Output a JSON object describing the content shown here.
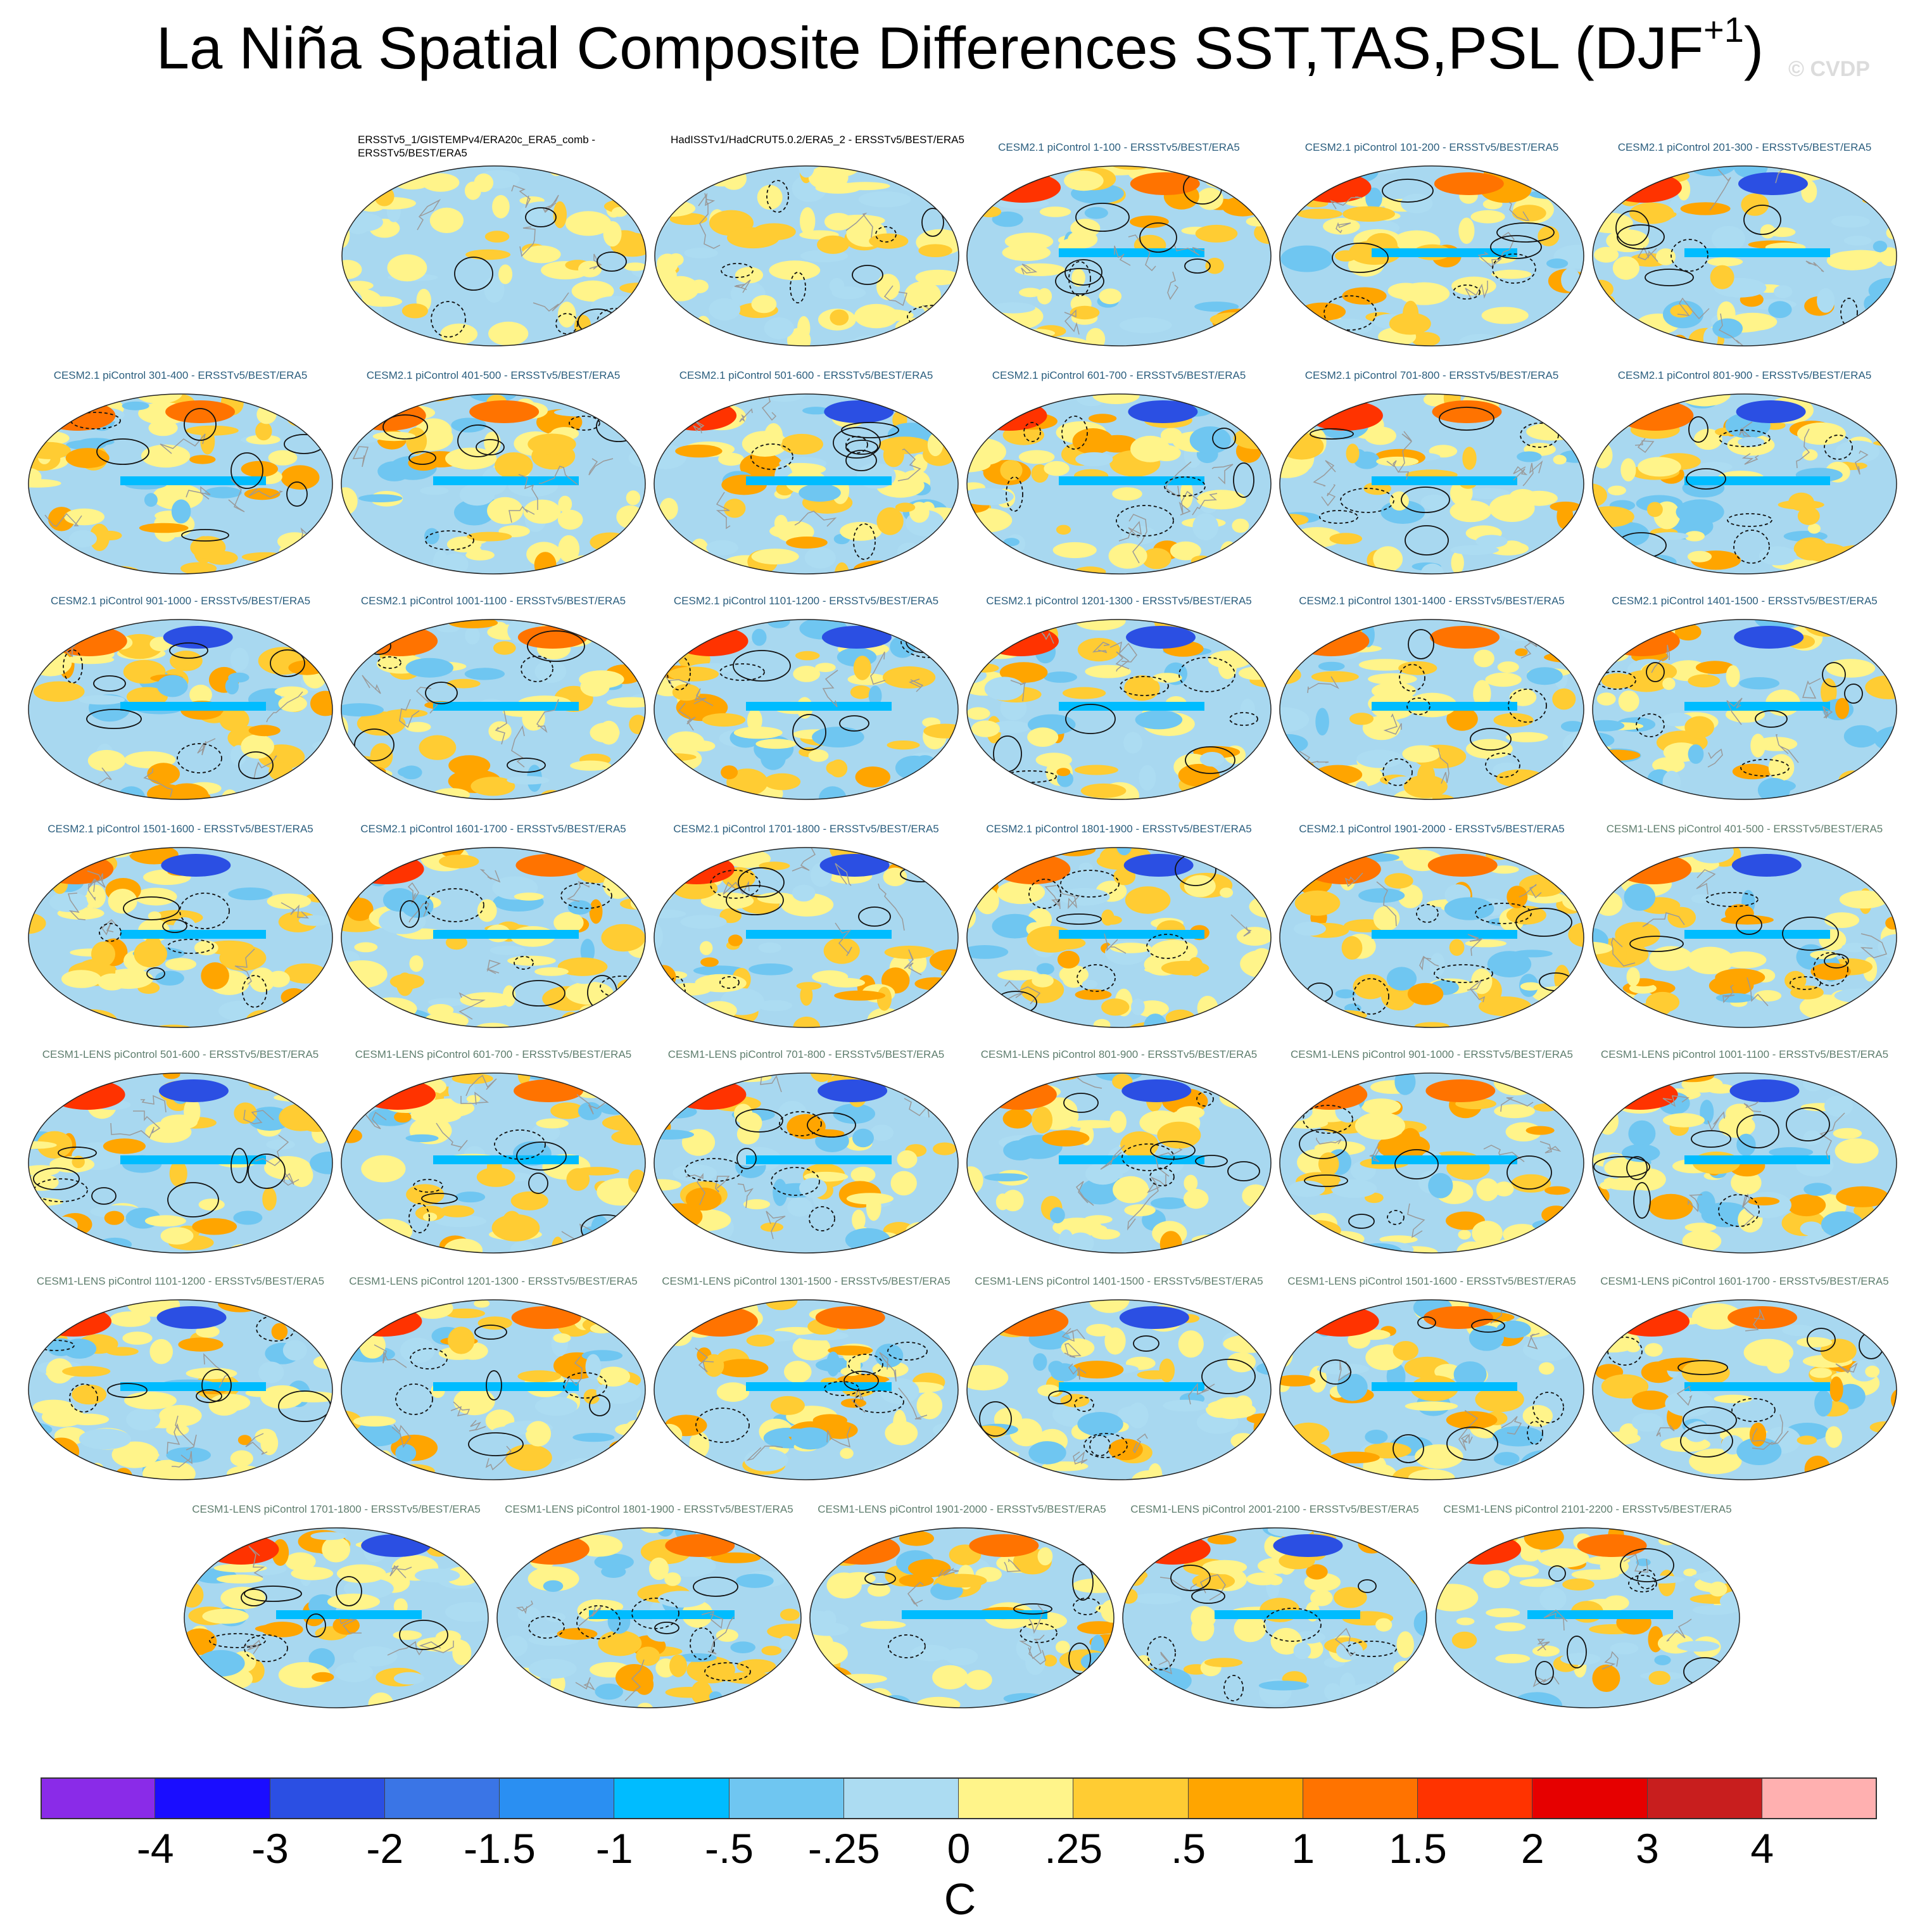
{
  "title": {
    "main": "La Niña Spatial Composite Differences SST,TAS,PSL (DJF",
    "superscript": "+1",
    "close": ")"
  },
  "watermark": "© CVDP",
  "colors": {
    "ocean_light": "#a8d8f0",
    "model_label_cesm2": "#2b5e7e",
    "model_label_cesm1": "#5f7e6e"
  },
  "panels": [
    {
      "label": "ERSSTv5_1/GISTEMPv4/ERA20c_ERA5_comb - ERSSTv5/BEST/ERA5",
      "group": "obs"
    },
    {
      "label": "HadISSTv1/HadCRUT5.0.2/ERA5_2 - ERSSTv5/BEST/ERA5",
      "group": "obs"
    },
    {
      "label": "CESM2.1 piControl 1-100 - ERSSTv5/BEST/ERA5",
      "group": "c2"
    },
    {
      "label": "CESM2.1 piControl 101-200 - ERSSTv5/BEST/ERA5",
      "group": "c2"
    },
    {
      "label": "CESM2.1 piControl 201-300 - ERSSTv5/BEST/ERA5",
      "group": "c2"
    },
    {
      "label": "CESM2.1 piControl 301-400 - ERSSTv5/BEST/ERA5",
      "group": "c2"
    },
    {
      "label": "CESM2.1 piControl 401-500 - ERSSTv5/BEST/ERA5",
      "group": "c2"
    },
    {
      "label": "CESM2.1 piControl 501-600 - ERSSTv5/BEST/ERA5",
      "group": "c2"
    },
    {
      "label": "CESM2.1 piControl 601-700 - ERSSTv5/BEST/ERA5",
      "group": "c2"
    },
    {
      "label": "CESM2.1 piControl 701-800 - ERSSTv5/BEST/ERA5",
      "group": "c2"
    },
    {
      "label": "CESM2.1 piControl 801-900 - ERSSTv5/BEST/ERA5",
      "group": "c2"
    },
    {
      "label": "CESM2.1 piControl 901-1000 - ERSSTv5/BEST/ERA5",
      "group": "c2"
    },
    {
      "label": "CESM2.1 piControl 1001-1100 - ERSSTv5/BEST/ERA5",
      "group": "c2"
    },
    {
      "label": "CESM2.1 piControl 1101-1200 - ERSSTv5/BEST/ERA5",
      "group": "c2"
    },
    {
      "label": "CESM2.1 piControl 1201-1300 - ERSSTv5/BEST/ERA5",
      "group": "c2"
    },
    {
      "label": "CESM2.1 piControl 1301-1400 - ERSSTv5/BEST/ERA5",
      "group": "c2"
    },
    {
      "label": "CESM2.1 piControl 1401-1500 - ERSSTv5/BEST/ERA5",
      "group": "c2"
    },
    {
      "label": "CESM2.1 piControl 1501-1600 - ERSSTv5/BEST/ERA5",
      "group": "c2"
    },
    {
      "label": "CESM2.1 piControl 1601-1700 - ERSSTv5/BEST/ERA5",
      "group": "c2"
    },
    {
      "label": "CESM2.1 piControl 1701-1800 - ERSSTv5/BEST/ERA5",
      "group": "c2"
    },
    {
      "label": "CESM2.1 piControl 1801-1900 - ERSSTv5/BEST/ERA5",
      "group": "c2"
    },
    {
      "label": "CESM2.1 piControl 1901-2000 - ERSSTv5/BEST/ERA5",
      "group": "c2"
    },
    {
      "label": "CESM1-LENS piControl 401-500 - ERSSTv5/BEST/ERA5",
      "group": "c1"
    },
    {
      "label": "CESM1-LENS piControl 501-600 - ERSSTv5/BEST/ERA5",
      "group": "c1"
    },
    {
      "label": "CESM1-LENS piControl 601-700 - ERSSTv5/BEST/ERA5",
      "group": "c1"
    },
    {
      "label": "CESM1-LENS piControl 701-800 - ERSSTv5/BEST/ERA5",
      "group": "c1"
    },
    {
      "label": "CESM1-LENS piControl 801-900 - ERSSTv5/BEST/ERA5",
      "group": "c1"
    },
    {
      "label": "CESM1-LENS piControl 901-1000 - ERSSTv5/BEST/ERA5",
      "group": "c1"
    },
    {
      "label": "CESM1-LENS piControl 1001-1100 - ERSSTv5/BEST/ERA5",
      "group": "c1"
    },
    {
      "label": "CESM1-LENS piControl 1101-1200 - ERSSTv5/BEST/ERA5",
      "group": "c1"
    },
    {
      "label": "CESM1-LENS piControl 1201-1300 - ERSSTv5/BEST/ERA5",
      "group": "c1"
    },
    {
      "label": "CESM1-LENS piControl 1301-1500 - ERSSTv5/BEST/ERA5",
      "group": "c1"
    },
    {
      "label": "CESM1-LENS piControl 1401-1500 - ERSSTv5/BEST/ERA5",
      "group": "c1"
    },
    {
      "label": "CESM1-LENS piControl 1501-1600 - ERSSTv5/BEST/ERA5",
      "group": "c1"
    },
    {
      "label": "CESM1-LENS piControl 1601-1700 - ERSSTv5/BEST/ERA5",
      "group": "c1"
    },
    {
      "label": "CESM1-LENS piControl 1701-1800 - ERSSTv5/BEST/ERA5",
      "group": "c1"
    },
    {
      "label": "CESM1-LENS piControl 1801-1900 - ERSSTv5/BEST/ERA5",
      "group": "c1"
    },
    {
      "label": "CESM1-LENS piControl 1901-2000 - ERSSTv5/BEST/ERA5",
      "group": "c1"
    },
    {
      "label": "CESM1-LENS piControl 2001-2100 - ERSSTv5/BEST/ERA5",
      "group": "c1"
    },
    {
      "label": "CESM1-LENS piControl 2101-2200 - ERSSTv5/BEST/ERA5",
      "group": "c1"
    }
  ],
  "chart_data": {
    "type": "heatmap",
    "title": "La Niña Spatial Composite Differences SST,TAS,PSL (DJF+1)",
    "description_fields": "SST/TAS shaded, PSL contoured (solid positive, dashed negative)",
    "colorbar": {
      "unit": "C",
      "tick_labels": [
        "-4",
        "-3",
        "-2",
        "-1.5",
        "-1",
        "-.5",
        "-.25",
        "0",
        ".25",
        ".5",
        "1",
        "1.5",
        "2",
        "3",
        "4"
      ],
      "levels": [
        -4,
        -3,
        -2,
        -1.5,
        -1,
        -0.5,
        -0.25,
        0,
        0.25,
        0.5,
        1,
        1.5,
        2,
        3,
        4
      ],
      "colors": [
        "#8a2be8",
        "#1a0dff",
        "#2b4fe3",
        "#3a75e6",
        "#2a8ff2",
        "#00bcff",
        "#6fc6f1",
        "#acdcf2",
        "#fff48a",
        "#ffcc33",
        "#ffa500",
        "#ff7300",
        "#ff3300",
        "#e60000",
        "#c81e1e",
        "#ffb0b0"
      ]
    }
  }
}
